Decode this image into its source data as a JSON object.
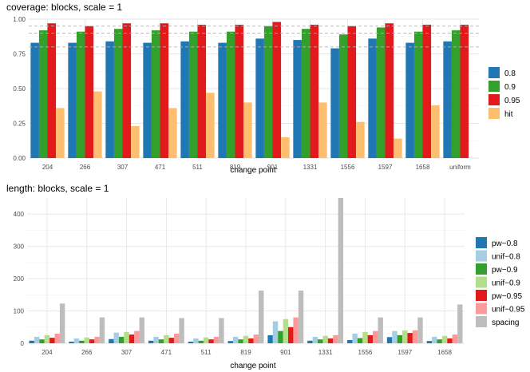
{
  "chart_data": [
    {
      "type": "bar",
      "title": "coverage: blocks, scale = 1",
      "xlabel": "change point",
      "ylabel": "",
      "categories": [
        "204",
        "266",
        "307",
        "471",
        "511",
        "819",
        "901",
        "1331",
        "1556",
        "1597",
        "1658",
        "uniform"
      ],
      "ylim": [
        0,
        1.0
      ],
      "yticks": [
        "0.00",
        "0.25",
        "0.50",
        "0.75",
        "1.00"
      ],
      "reference_lines": [
        0.8,
        0.9,
        0.95
      ],
      "grid": true,
      "legend_position": "right",
      "series": [
        {
          "name": "0.8",
          "color": "#1f78b4",
          "values": [
            0.83,
            0.83,
            0.84,
            0.83,
            0.84,
            0.83,
            0.86,
            0.85,
            0.79,
            0.86,
            0.83,
            0.84
          ]
        },
        {
          "name": "0.9",
          "color": "#33a02c",
          "values": [
            0.92,
            0.91,
            0.93,
            0.92,
            0.91,
            0.91,
            0.95,
            0.93,
            0.89,
            0.94,
            0.91,
            0.92
          ]
        },
        {
          "name": "0.95",
          "color": "#e31a1c",
          "values": [
            0.97,
            0.95,
            0.97,
            0.97,
            0.96,
            0.96,
            0.98,
            0.96,
            0.95,
            0.97,
            0.96,
            0.96
          ]
        },
        {
          "name": "hit",
          "color": "#fdbf6f",
          "values": [
            0.36,
            0.48,
            0.23,
            0.36,
            0.47,
            0.4,
            0.15,
            0.4,
            0.26,
            0.14,
            0.38,
            null
          ]
        }
      ]
    },
    {
      "type": "bar",
      "title": "length: blocks, scale = 1",
      "xlabel": "change point",
      "ylabel": "",
      "categories": [
        "204",
        "266",
        "307",
        "471",
        "511",
        "819",
        "901",
        "1331",
        "1556",
        "1597",
        "1658"
      ],
      "ylim": [
        0,
        450
      ],
      "yticks": [
        "0",
        "100",
        "200",
        "300",
        "400"
      ],
      "grid": true,
      "legend_position": "right",
      "series": [
        {
          "name": "pw−0.8",
          "color": "#1f78b4",
          "values": [
            8,
            5,
            13,
            8,
            5,
            7,
            25,
            8,
            10,
            19,
            7
          ]
        },
        {
          "name": "unif−0.8",
          "color": "#a6cee3",
          "values": [
            20,
            15,
            33,
            20,
            15,
            20,
            68,
            20,
            30,
            38,
            20
          ]
        },
        {
          "name": "pw−0.9",
          "color": "#33a02c",
          "values": [
            12,
            8,
            20,
            12,
            8,
            12,
            38,
            12,
            16,
            25,
            12
          ]
        },
        {
          "name": "unif−0.9",
          "color": "#b2df8a",
          "values": [
            25,
            18,
            35,
            25,
            18,
            23,
            75,
            23,
            35,
            40,
            23
          ]
        },
        {
          "name": "pw−0.95",
          "color": "#e31a1c",
          "values": [
            17,
            12,
            27,
            17,
            12,
            15,
            50,
            15,
            25,
            32,
            15
          ]
        },
        {
          "name": "unif−0.95",
          "color": "#fb9a99",
          "values": [
            30,
            20,
            38,
            30,
            20,
            27,
            80,
            25,
            38,
            40,
            27
          ]
        },
        {
          "name": "spacing",
          "color": "#bdbdbd",
          "values": [
            123,
            80,
            80,
            78,
            78,
            163,
            163,
            450,
            80,
            80,
            120
          ]
        }
      ]
    }
  ]
}
